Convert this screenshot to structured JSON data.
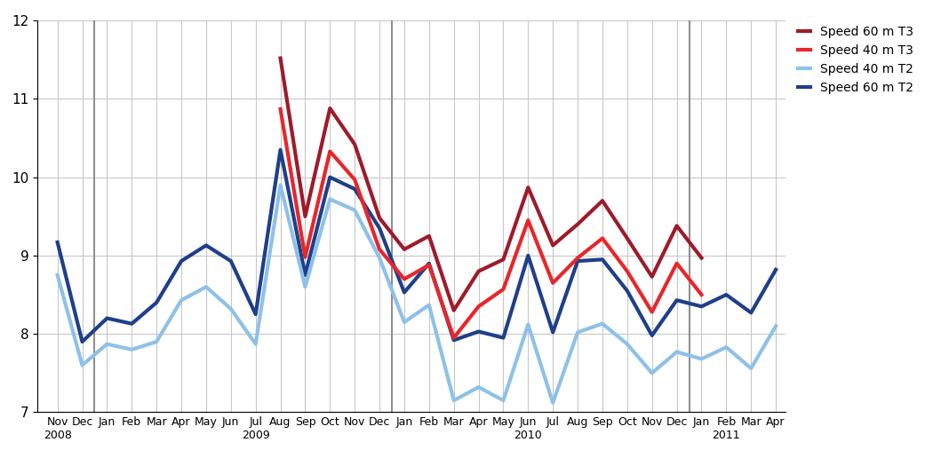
{
  "chart_data": {
    "type": "line",
    "categories": [
      "Nov\n2008",
      "Dec",
      "Jan",
      "Feb",
      "Mar",
      "Apr",
      "May",
      "Jun",
      "Jul\n2009",
      "Aug",
      "Sep",
      "Oct",
      "Nov",
      "Dec",
      "Jan",
      "Feb",
      "Mar",
      "Apr",
      "May",
      "Jun\n2010",
      "Jul",
      "Aug",
      "Sep",
      "Oct",
      "Nov",
      "Dec",
      "Jan",
      "Feb\n2011",
      "Mar",
      "Apr"
    ],
    "series": [
      {
        "name": "Speed 60 m T3",
        "color": "#9e1b2b",
        "values": [
          null,
          null,
          null,
          null,
          null,
          null,
          null,
          null,
          null,
          11.52,
          9.5,
          10.88,
          10.42,
          9.48,
          9.08,
          9.25,
          8.3,
          8.8,
          8.95,
          9.87,
          9.13,
          9.4,
          9.7,
          9.22,
          8.73,
          9.38,
          8.97,
          null,
          null,
          null
        ]
      },
      {
        "name": "Speed 40 m T3",
        "color": "#e8262b",
        "values": [
          null,
          null,
          null,
          null,
          null,
          null,
          null,
          null,
          null,
          10.87,
          8.98,
          10.33,
          9.97,
          9.08,
          8.7,
          8.88,
          7.95,
          8.35,
          8.57,
          9.45,
          8.65,
          8.97,
          9.22,
          8.8,
          8.28,
          8.9,
          8.5,
          null,
          null,
          null
        ]
      },
      {
        "name": "Speed 40 m T2",
        "color": "#8ec1e8",
        "values": [
          8.75,
          7.6,
          7.87,
          7.8,
          7.9,
          8.43,
          8.6,
          8.32,
          7.87,
          9.9,
          8.6,
          9.72,
          9.58,
          8.97,
          8.15,
          8.37,
          7.15,
          7.32,
          7.15,
          8.12,
          7.12,
          8.02,
          8.13,
          7.87,
          7.5,
          7.77,
          7.68,
          7.83,
          7.56,
          8.1
        ]
      },
      {
        "name": "Speed 60 m T2",
        "color": "#1f3f8a",
        "values": [
          9.17,
          7.9,
          8.2,
          8.13,
          8.4,
          8.93,
          9.13,
          8.93,
          8.25,
          10.35,
          8.75,
          10.0,
          9.85,
          9.35,
          8.53,
          8.9,
          7.92,
          8.03,
          7.95,
          9.0,
          8.02,
          8.93,
          8.95,
          8.55,
          7.98,
          8.43,
          8.35,
          8.5,
          8.27,
          8.82
        ]
      }
    ],
    "ylim": [
      7,
      12
    ],
    "yticks": [
      7,
      8,
      9,
      10,
      11,
      12
    ],
    "grid": true,
    "legend": "upper left"
  }
}
